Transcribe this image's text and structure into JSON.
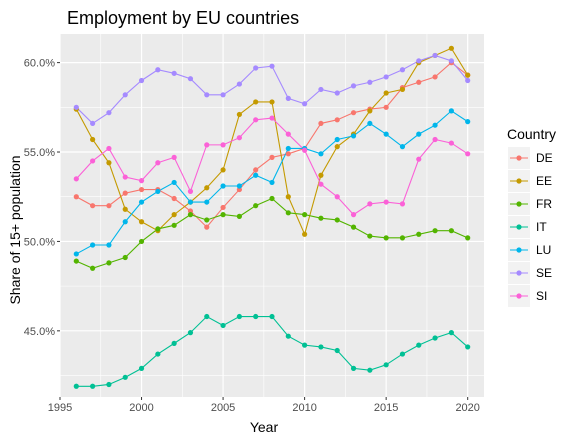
{
  "chart_data": {
    "type": "line",
    "title": "Employment by EU countries",
    "xlabel": "Year",
    "ylabel": "Share of 15+ population",
    "xlim": [
      1995,
      2021
    ],
    "ylim": [
      41.3,
      61.6
    ],
    "x_ticks": [
      1995,
      2000,
      2005,
      2010,
      2015,
      2020
    ],
    "y_ticks": [
      45.0,
      50.0,
      55.0,
      60.0
    ],
    "y_tick_labels": [
      "45.0%",
      "50.0%",
      "55.0%",
      "60.0%"
    ],
    "grid": true,
    "legend_title": "Country",
    "legend_position": "right",
    "x": [
      1996,
      1997,
      1998,
      1999,
      2000,
      2001,
      2002,
      2003,
      2004,
      2005,
      2006,
      2007,
      2008,
      2009,
      2010,
      2011,
      2012,
      2013,
      2014,
      2015,
      2016,
      2017,
      2018,
      2019,
      2020
    ],
    "series": [
      {
        "name": "DE",
        "color": "#F8766D",
        "values": [
          52.5,
          52.0,
          52.0,
          52.7,
          52.9,
          52.9,
          52.4,
          51.7,
          50.8,
          51.9,
          52.9,
          54.0,
          54.7,
          54.9,
          55.2,
          56.6,
          56.8,
          57.2,
          57.4,
          57.5,
          58.6,
          58.9,
          59.2,
          60.0,
          59.3
        ]
      },
      {
        "name": "EE",
        "color": "#C49A00",
        "values": [
          57.4,
          55.7,
          54.4,
          51.8,
          51.1,
          50.6,
          51.5,
          52.2,
          53.0,
          54.0,
          57.1,
          57.8,
          57.8,
          52.5,
          50.4,
          53.7,
          55.3,
          56.0,
          57.3,
          58.3,
          58.5,
          60.0,
          60.4,
          60.8,
          59.3
        ]
      },
      {
        "name": "FR",
        "color": "#53B400",
        "values": [
          48.9,
          48.5,
          48.8,
          49.1,
          50.0,
          50.7,
          50.9,
          51.5,
          51.2,
          51.5,
          51.4,
          52.0,
          52.4,
          51.6,
          51.5,
          51.3,
          51.2,
          50.8,
          50.3,
          50.2,
          50.2,
          50.4,
          50.6,
          50.6,
          50.2
        ]
      },
      {
        "name": "IT",
        "color": "#00C094",
        "values": [
          41.9,
          41.9,
          42.0,
          42.4,
          42.9,
          43.7,
          44.3,
          44.9,
          45.8,
          45.3,
          45.8,
          45.8,
          45.8,
          44.7,
          44.2,
          44.1,
          43.9,
          42.9,
          42.8,
          43.1,
          43.7,
          44.2,
          44.6,
          44.9,
          44.1
        ]
      },
      {
        "name": "LU",
        "color": "#00B6EB",
        "values": [
          49.3,
          49.8,
          49.8,
          51.1,
          52.2,
          52.8,
          53.3,
          52.2,
          52.2,
          53.1,
          53.1,
          53.7,
          53.3,
          55.2,
          55.2,
          54.9,
          55.7,
          55.9,
          56.6,
          56.0,
          55.3,
          56.0,
          56.5,
          57.3,
          56.7
        ]
      },
      {
        "name": "SE",
        "color": "#A58AFF",
        "values": [
          57.5,
          56.6,
          57.2,
          58.2,
          59.0,
          59.6,
          59.4,
          59.1,
          58.2,
          58.2,
          58.8,
          59.7,
          59.8,
          58.0,
          57.7,
          58.5,
          58.3,
          58.7,
          58.9,
          59.2,
          59.6,
          60.1,
          60.4,
          60.1,
          59.0
        ]
      },
      {
        "name": "SI",
        "color": "#FB61D7",
        "values": [
          53.5,
          54.5,
          55.2,
          53.6,
          53.4,
          54.4,
          54.7,
          52.8,
          55.4,
          55.4,
          55.8,
          56.8,
          56.9,
          56.0,
          55.1,
          53.2,
          52.5,
          51.5,
          52.1,
          52.2,
          52.1,
          54.6,
          55.7,
          55.5,
          54.9
        ]
      }
    ]
  }
}
